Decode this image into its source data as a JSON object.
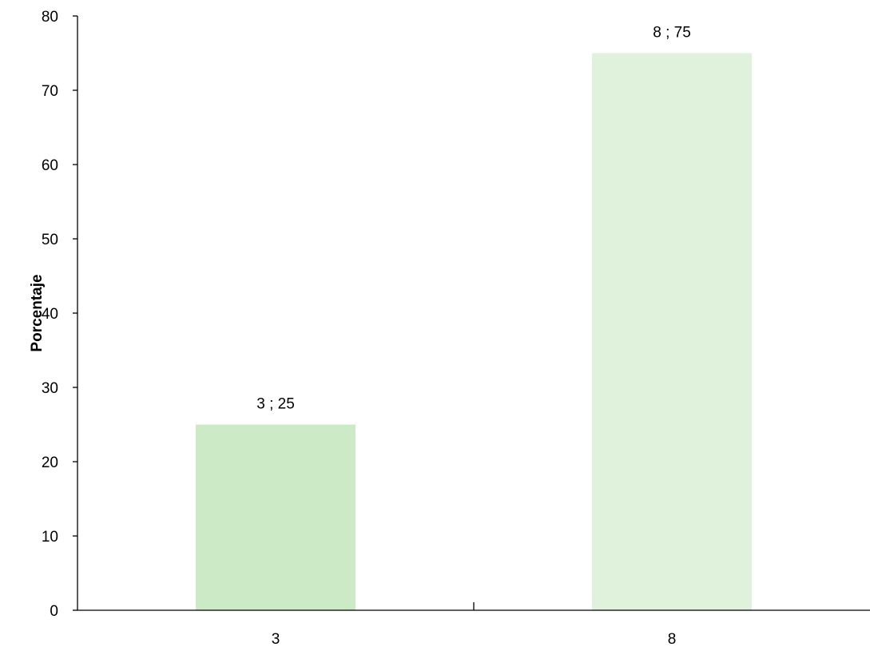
{
  "chart_data": {
    "type": "bar",
    "categories": [
      "3",
      "8"
    ],
    "values": [
      25,
      75
    ],
    "data_labels": [
      "3 ; 25",
      "8 ; 75"
    ],
    "bar_colors": [
      "#cdeac7",
      "#e0f2db"
    ],
    "title": "",
    "xlabel": "",
    "ylabel": "Porcentaje",
    "ylim": [
      0,
      80
    ],
    "yticks": [
      0,
      10,
      20,
      30,
      40,
      50,
      60,
      70,
      80
    ],
    "grid": false,
    "legend": "none"
  }
}
